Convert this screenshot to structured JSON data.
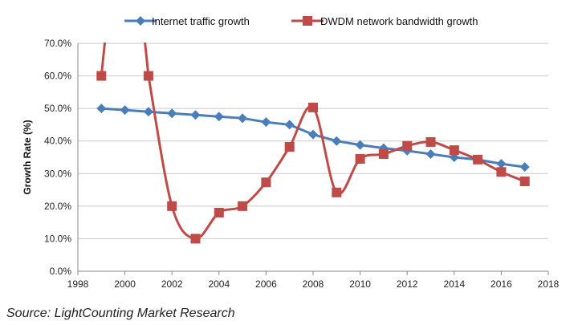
{
  "colors": {
    "series1": "#4a7ebb",
    "series2": "#be4b48",
    "grid": "#c8c8c8",
    "axis": "#888888"
  },
  "chart_data": {
    "type": "line",
    "title": "",
    "xlabel": "",
    "ylabel": "Growth Rate (%)",
    "xlim": [
      1998,
      2018
    ],
    "ylim": [
      0,
      70
    ],
    "x_ticks": [
      1998,
      2000,
      2002,
      2004,
      2006,
      2008,
      2010,
      2012,
      2014,
      2016,
      2018
    ],
    "x_tick_labels": [
      "1998",
      "2000",
      "2002",
      "2004",
      "2006",
      "2008",
      "2010",
      "2012",
      "2014",
      "2016",
      "2018"
    ],
    "y_ticks": [
      0,
      10,
      20,
      30,
      40,
      50,
      60,
      70
    ],
    "y_tick_labels": [
      "0.0%",
      "10.0%",
      "20.0%",
      "30.0%",
      "40.0%",
      "50.0%",
      "60.0%",
      "70.0%"
    ],
    "grid": true,
    "legend_position": "top",
    "series": [
      {
        "name": "Internet traffic growth",
        "marker": "diamond",
        "x": [
          1999,
          2000,
          2001,
          2002,
          2003,
          2004,
          2005,
          2006,
          2007,
          2008,
          2009,
          2010,
          2011,
          2012,
          2013,
          2014,
          2015,
          2016,
          2017
        ],
        "values": [
          50,
          49.5,
          49,
          48.5,
          48,
          47.5,
          47,
          45.8,
          45,
          42,
          40,
          38.8,
          37.8,
          37,
          36,
          35,
          34.3,
          33,
          32
        ]
      },
      {
        "name": "DWDM network bandwidth growth",
        "marker": "square",
        "x": [
          1999,
          2001,
          2002,
          2003,
          2004,
          2005,
          2006,
          2007,
          2008,
          2009,
          2010,
          2011,
          2012,
          2013,
          2014,
          2015,
          2016,
          2017
        ],
        "values": [
          60,
          60,
          20,
          10,
          18,
          20,
          27.3,
          38.2,
          50.3,
          24.2,
          34.5,
          36,
          38.5,
          39.7,
          37.2,
          34.3,
          30.5,
          27.6
        ]
      }
    ]
  },
  "source_text": "Source: LightCounting Market Research"
}
